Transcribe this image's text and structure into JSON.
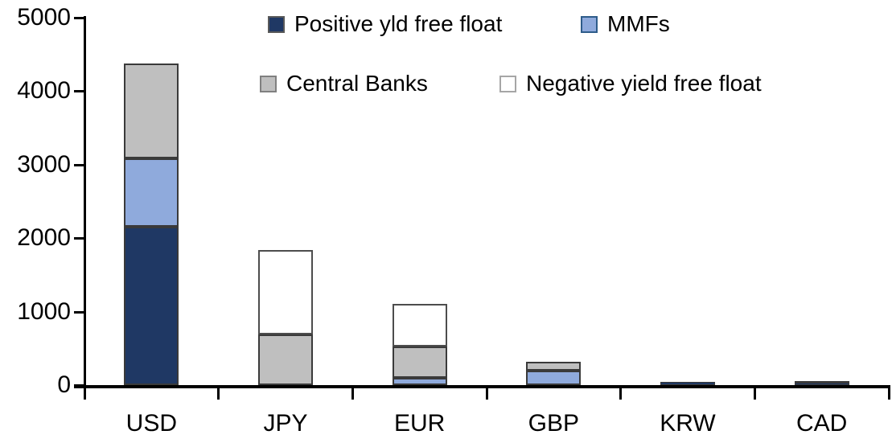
{
  "chart_data": {
    "type": "bar",
    "stacked": true,
    "title": "",
    "xlabel": "",
    "ylabel": "",
    "grid": false,
    "legend_position": "top",
    "categories": [
      "USD",
      "JPY",
      "EUR",
      "GBP",
      "KRW",
      "CAD"
    ],
    "series": [
      {
        "name": "Positive yld free float",
        "color": "#1F3864",
        "stroke": "#3A3A3A",
        "swatch_border": "#595959",
        "values": [
          2150,
          0,
          0,
          0,
          40,
          30
        ]
      },
      {
        "name": "MMFs",
        "color": "#8FAADC",
        "stroke": "#3A3A3A",
        "swatch_border": "#2E5C8A",
        "values": [
          940,
          0,
          100,
          200,
          0,
          0
        ]
      },
      {
        "name": "Central Banks",
        "color": "#BFBFBF",
        "stroke": "#3A3A3A",
        "swatch_border": "#808080",
        "values": [
          1290,
          690,
          420,
          120,
          0,
          30
        ]
      },
      {
        "name": "Negative yield free float",
        "color": "#FFFFFF",
        "stroke": "#4D4D4D",
        "swatch_border": "#A6A6A6",
        "values": [
          0,
          1150,
          580,
          0,
          0,
          0
        ]
      }
    ],
    "totals": [
      4380,
      1840,
      1100,
      320,
      40,
      60
    ],
    "ylim": [
      0,
      5000
    ],
    "yticks": [
      0,
      1000,
      2000,
      3000,
      4000,
      5000
    ],
    "axis_color": "#000000",
    "background": "#FFFFFF"
  }
}
